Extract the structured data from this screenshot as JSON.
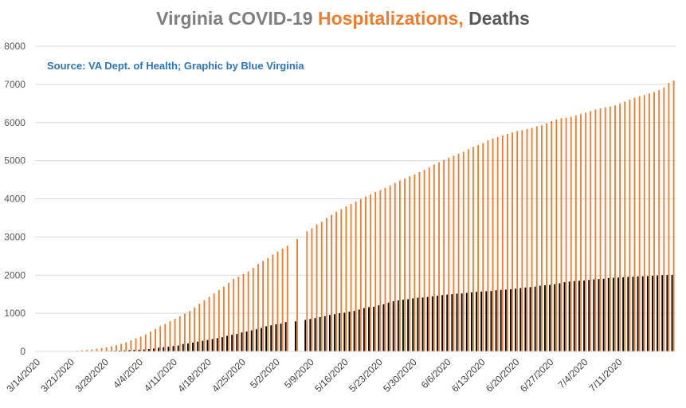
{
  "title": {
    "part1": "Virginia COVID-19 ",
    "part2": "Hospitalizations,",
    "part3": " Deaths"
  },
  "source_note": "Source: VA Dept. of Health; Graphic by Blue Virginia",
  "colors": {
    "hospitalizations": "#ed7d31",
    "deaths": "#000000",
    "gridline": "#d9d9d9",
    "title_gray": "#7f7f7f",
    "title_orange": "#ed7d31",
    "title_dark": "#595959",
    "source_blue": "#2e75b6"
  },
  "chart_data": {
    "type": "bar",
    "title": "Virginia COVID-19 Hospitalizations, Deaths",
    "ylim": [
      0,
      8000
    ],
    "yticks": [
      0,
      1000,
      2000,
      3000,
      4000,
      5000,
      6000,
      7000,
      8000
    ],
    "grid": true,
    "legend": "none",
    "xtick_labels": [
      "3/14/2020",
      "3/21/2020",
      "3/28/2020",
      "4/4/2020",
      "4/11/2020",
      "4/18/2020",
      "4/25/2020",
      "5/2/2020",
      "5/9/2020",
      "5/16/2020",
      "5/23/2020",
      "5/30/2020",
      "6/6/2020",
      "6/13/2020",
      "6/20/2020",
      "6/27/2020",
      "7/4/2020",
      "7/11/2020"
    ],
    "x_start": "3/14/2020",
    "x_end": "7/17/2020",
    "series": [
      {
        "name": "Hospitalizations",
        "color": "#ed7d31",
        "values": [
          0,
          0,
          0,
          0,
          0,
          0,
          0,
          10,
          20,
          30,
          40,
          50,
          70,
          90,
          110,
          135,
          165,
          200,
          240,
          290,
          340,
          390,
          450,
          520,
          590,
          660,
          720,
          790,
          860,
          920,
          990,
          1060,
          1150,
          1250,
          1340,
          1430,
          1520,
          1610,
          1700,
          1800,
          1900,
          1960,
          2030,
          2100,
          2190,
          2290,
          2370,
          2450,
          2540,
          2620,
          2700,
          2770,
          null,
          2950,
          null,
          3150,
          3230,
          3330,
          3400,
          3500,
          3580,
          3660,
          3730,
          3800,
          3860,
          3930,
          3990,
          4060,
          4120,
          4180,
          4230,
          4290,
          4350,
          4420,
          4480,
          4530,
          4590,
          4640,
          4700,
          4760,
          4830,
          4900,
          4960,
          5020,
          5080,
          5130,
          5180,
          5230,
          5300,
          5360,
          5410,
          5460,
          5530,
          5580,
          5620,
          5660,
          5700,
          5740,
          5780,
          5800,
          5830,
          5860,
          5900,
          5930,
          5980,
          6040,
          6080,
          6110,
          6130,
          6150,
          6180,
          6220,
          6260,
          6300,
          6340,
          6370,
          6400,
          6420,
          6450,
          6500,
          6550,
          6600,
          6650,
          6690,
          6720,
          6760,
          6800,
          6850,
          6920,
          7040,
          7100
        ]
      },
      {
        "name": "Deaths",
        "color": "#000000",
        "values": [
          0,
          0,
          0,
          0,
          0,
          0,
          0,
          2,
          3,
          3,
          5,
          6,
          7,
          9,
          12,
          14,
          17,
          22,
          27,
          34,
          41,
          45,
          52,
          63,
          75,
          99,
          109,
          121,
          141,
          154,
          195,
          208,
          231,
          258,
          277,
          300,
          324,
          349,
          372,
          410,
          436,
          458,
          497,
          522,
          552,
          581,
          616,
          660,
          684,
          711,
          728,
          769,
          null,
          788,
          null,
          827,
          850,
          872,
          900,
          927,
          955,
          977,
          1002,
          1014,
          1041,
          1062,
          1099,
          1136,
          1159,
          1171,
          1208,
          1236,
          1281,
          1314,
          1338,
          1358,
          1370,
          1392,
          1407,
          1414,
          1428,
          1445,
          1459,
          1477,
          1490,
          1500,
          1514,
          1520,
          1534,
          1549,
          1562,
          1570,
          1580,
          1586,
          1602,
          1613,
          1620,
          1630,
          1645,
          1661,
          1675,
          1685,
          1700,
          1721,
          1732,
          1745,
          1763,
          1787,
          1814,
          1830,
          1845,
          1853,
          1858,
          1875,
          1889,
          1898,
          1905,
          1922,
          1930,
          1936,
          1943,
          1955,
          1958,
          1966,
          1968,
          1977,
          1983,
          1992,
          2000,
          2004,
          2007
        ]
      }
    ]
  }
}
